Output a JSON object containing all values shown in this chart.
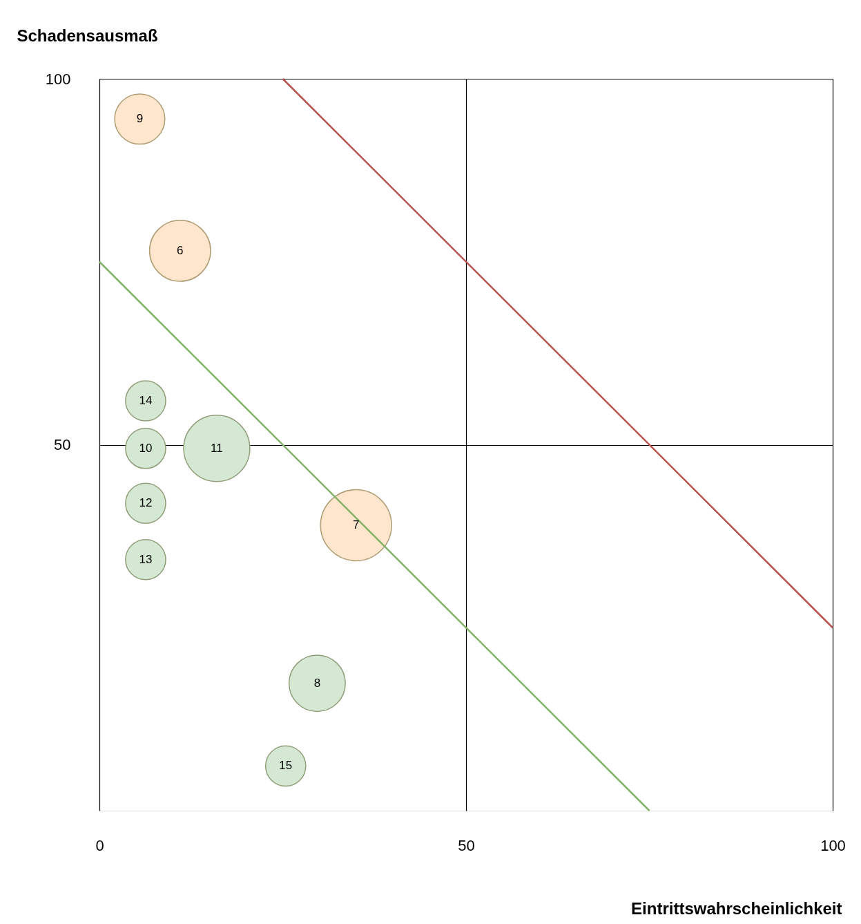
{
  "chart_data": {
    "type": "bubble",
    "xlabel": "Eintrittswahrscheinlichkeit",
    "ylabel": "Schadensausmaß",
    "xlim": [
      0,
      100
    ],
    "ylim": [
      0,
      100
    ],
    "xticks": [
      0,
      50,
      100
    ],
    "yticks": [
      50,
      100
    ],
    "grid": true,
    "series": [
      {
        "color": "#ffe6cc",
        "x": [
          5.5,
          11,
          35
        ],
        "values": [
          94.5,
          76.5,
          39
        ],
        "sizes": [
          0.5,
          0.74,
          1
        ]
      },
      {
        "color": "#d5e8d4",
        "x": [
          6.3,
          6.3,
          16,
          6.3,
          6.3,
          29.7,
          25.4
        ],
        "values": [
          56,
          49.5,
          49.5,
          42,
          34.3,
          17.4,
          6.1
        ],
        "sizes": [
          0.32,
          0.32,
          0.87,
          0.32,
          0.32,
          0.63,
          0.32
        ]
      },
      {
        "type": "line",
        "color": "#82b366",
        "x": [
          0,
          75
        ],
        "values": [
          75,
          0
        ]
      },
      {
        "type": "line",
        "color": "#b85450",
        "x": [
          25,
          100
        ],
        "values": [
          100,
          25
        ]
      }
    ],
    "annotations": [
      "9",
      "6",
      "7",
      "14",
      "10",
      "11",
      "12",
      "13",
      "8",
      "15"
    ]
  }
}
